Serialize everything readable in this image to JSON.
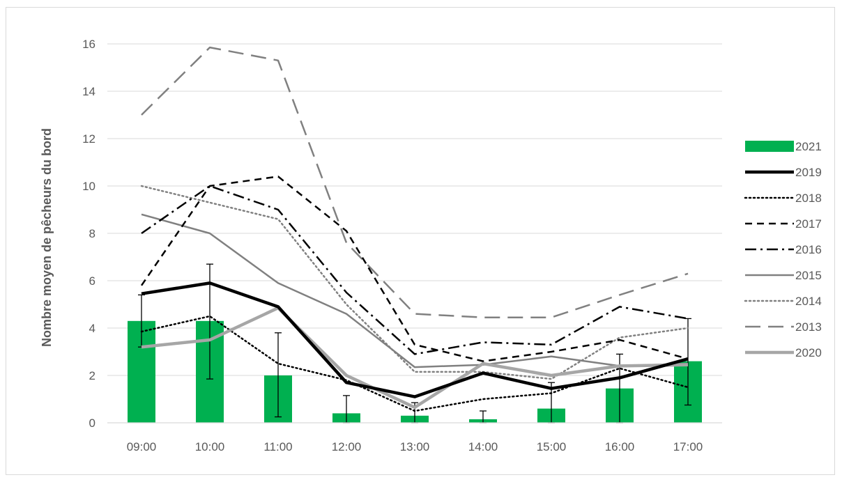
{
  "chart_data": {
    "type": "bar",
    "title": "",
    "xlabel": "",
    "ylabel": "Nombre moyen de pêcheurs du bord",
    "ylim": [
      0,
      16
    ],
    "yticks": [
      0,
      2,
      4,
      6,
      8,
      10,
      12,
      14,
      16
    ],
    "grid": true,
    "legend_position": "right",
    "categories": [
      "09:00",
      "10:00",
      "11:00",
      "12:00",
      "13:00",
      "14:00",
      "15:00",
      "16:00",
      "17:00"
    ],
    "bars": {
      "name": "2021",
      "color": "#00b050",
      "values": [
        4.3,
        4.3,
        2.0,
        0.4,
        0.3,
        0.15,
        0.6,
        1.45,
        2.6
      ],
      "error_low": [
        3.2,
        1.85,
        0.25,
        0.0,
        0.0,
        0.0,
        0.0,
        0.0,
        0.75
      ],
      "error_high": [
        5.4,
        6.7,
        3.8,
        1.15,
        0.85,
        0.5,
        1.7,
        2.9,
        4.4
      ]
    },
    "series": [
      {
        "name": "2019",
        "color": "#000000",
        "style": "solid-thick",
        "values": [
          5.45,
          5.9,
          4.9,
          1.7,
          1.1,
          2.1,
          1.45,
          1.9,
          2.7
        ]
      },
      {
        "name": "2018",
        "color": "#000000",
        "style": "dotted",
        "values": [
          3.85,
          4.5,
          2.5,
          1.8,
          0.5,
          1.0,
          1.25,
          2.3,
          1.5
        ]
      },
      {
        "name": "2017",
        "color": "#000000",
        "style": "dashed",
        "values": [
          5.8,
          10.0,
          10.4,
          8.1,
          3.3,
          2.6,
          3.0,
          3.5,
          2.7
        ]
      },
      {
        "name": "2016",
        "color": "#000000",
        "style": "dashdot",
        "values": [
          8.0,
          10.0,
          9.0,
          5.5,
          2.9,
          3.4,
          3.3,
          4.9,
          4.4
        ]
      },
      {
        "name": "2015",
        "color": "#808080",
        "style": "solid",
        "values": [
          8.8,
          8.0,
          5.9,
          4.6,
          2.35,
          2.45,
          2.8,
          2.4,
          2.5
        ]
      },
      {
        "name": "2014",
        "color": "#808080",
        "style": "dotted",
        "values": [
          10.0,
          9.3,
          8.6,
          5.0,
          2.15,
          2.15,
          1.85,
          3.6,
          4.0
        ]
      },
      {
        "name": "2013",
        "color": "#808080",
        "style": "longdash",
        "values": [
          13.0,
          15.85,
          15.3,
          7.6,
          4.6,
          4.45,
          4.45,
          5.4,
          6.3
        ]
      },
      {
        "name": "2020",
        "color": "#a6a6a6",
        "style": "solid-thick",
        "values": [
          3.2,
          3.5,
          4.85,
          2.0,
          0.65,
          2.5,
          2.0,
          2.4,
          2.45
        ]
      }
    ]
  }
}
